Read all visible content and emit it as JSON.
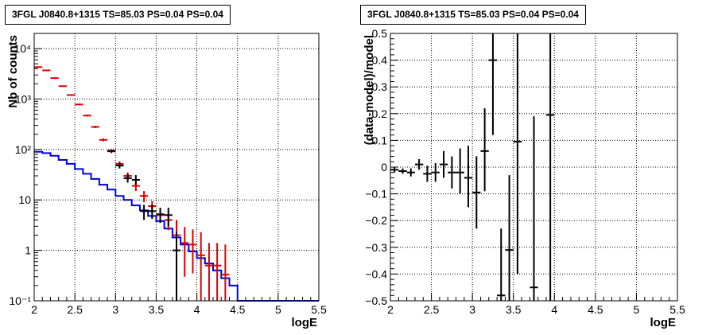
{
  "panels": [
    {
      "title": "3FGL J0840.8+1315 TS=85.03 PS=0.04 PS=0.04",
      "chart_data": {
        "type": "line",
        "xlabel": "logE",
        "ylabel": "Nb of counts",
        "xlim": [
          2,
          5.5
        ],
        "ylim": [
          0.1,
          20000
        ],
        "yscale": "log",
        "grid": true,
        "x_ticks": [
          "2",
          "2.5",
          "3",
          "3.5",
          "4",
          "4.5",
          "5",
          "5.5"
        ],
        "y_ticks": [
          {
            "v": 0.1,
            "label": "10⁻¹"
          },
          {
            "v": 1,
            "label": "1"
          },
          {
            "v": 10,
            "label": "10"
          },
          {
            "v": 100,
            "label": "10²"
          },
          {
            "v": 1000,
            "label": "10³"
          },
          {
            "v": 10000,
            "label": "10⁴"
          }
        ],
        "bin_edges": [
          2.0,
          2.1,
          2.2,
          2.3,
          2.4,
          2.5,
          2.6,
          2.7,
          2.8,
          2.9,
          3.0,
          3.1,
          3.2,
          3.3,
          3.4,
          3.5,
          3.6,
          3.7,
          3.8,
          3.9,
          4.0,
          4.1,
          4.2,
          4.3,
          4.4,
          4.5,
          4.6,
          4.7,
          4.8,
          4.9,
          5.0,
          5.1,
          5.2,
          5.3,
          5.4,
          5.5
        ],
        "series": [
          {
            "kind": "step",
            "color": "#0000dd",
            "values": [
              90,
              85,
              75,
              62,
              52,
              41,
              33,
              26,
              20,
              16,
              12,
              10,
              7.8,
              6.2,
              4.8,
              3.8,
              2.7,
              1.8,
              1.3,
              0.95,
              0.7,
              0.55,
              0.4,
              0.28,
              0.2,
              0.1,
              0.1,
              0.1,
              0.1,
              0.1,
              0.1,
              0.1,
              0.1,
              0.1,
              0.1
            ]
          },
          {
            "kind": "errorbar",
            "color": "#dd0000",
            "x": [
              2.05,
              2.15,
              2.25,
              2.35,
              2.45,
              2.55,
              2.65,
              2.75,
              2.85,
              2.95,
              3.05,
              3.15,
              3.25,
              3.35,
              3.45,
              3.55,
              3.65,
              3.75,
              3.85,
              3.95,
              4.05,
              4.15,
              4.25,
              4.35
            ],
            "y": [
              4300,
              3700,
              2600,
              1800,
              1200,
              780,
              470,
              280,
              155,
              95,
              52,
              30,
              19,
              12,
              7.5,
              5,
              4,
              2,
              1.4,
              1.3,
              0.8,
              0.5,
              0.5,
              0.33
            ],
            "lo": [
              4150,
              3580,
              2500,
              1740,
              1160,
              750,
              450,
              265,
              145,
              88,
              46,
              25,
              15,
              9,
              5.5,
              3.5,
              2.5,
              0.6,
              0.3,
              0.35,
              0.1,
              0.1,
              0.1,
              0.1
            ],
            "hi": [
              4450,
              3820,
              2700,
              1860,
              1240,
              810,
              490,
              295,
              165,
              102,
              58,
              35,
              23,
              15,
              9.5,
              7,
              5.7,
              4,
              2.9,
              2.6,
              2.3,
              1.4,
              1.4,
              1.3
            ]
          },
          {
            "kind": "errorbar",
            "color": "#000000",
            "x": [
              2.95,
              3.05,
              3.15,
              3.25,
              3.35,
              3.45,
              3.55,
              3.65,
              3.75
            ],
            "y": [
              92,
              48,
              27,
              25,
              6,
              6,
              5.2,
              5,
              1
            ],
            "lo": [
              85,
              42,
              22,
              20,
              4,
              4.2,
              3.5,
              3,
              0.1
            ],
            "hi": [
              99,
              55,
              33,
              31,
              8,
              8,
              7,
              7,
              2.3
            ]
          }
        ]
      }
    },
    {
      "title": "3FGL J0840.8+1315 TS=85.03 PS=0.04 PS=0.04",
      "chart_data": {
        "type": "scatter",
        "xlabel": "logE",
        "ylabel": "(data-model)/model",
        "xlim": [
          2,
          5.5
        ],
        "ylim": [
          -0.5,
          0.5
        ],
        "grid": true,
        "x_ticks": [
          "2",
          "2.5",
          "3",
          "3.5",
          "4",
          "4.5",
          "5",
          "5.5"
        ],
        "y_ticks": [
          "−0.5",
          "−0.4",
          "−0.3",
          "−0.2",
          "−0.1",
          "0",
          "0.1",
          "0.2",
          "0.3",
          "0.4",
          "0.5"
        ],
        "series": [
          {
            "kind": "errorbar",
            "color": "#000000",
            "x": [
              2.05,
              2.15,
              2.25,
              2.35,
              2.45,
              2.55,
              2.65,
              2.75,
              2.85,
              2.95,
              3.05,
              3.15,
              3.25,
              3.35,
              3.45,
              3.55,
              3.75,
              3.95
            ],
            "y": [
              -0.01,
              -0.015,
              -0.02,
              0.01,
              -0.025,
              -0.02,
              0.01,
              -0.02,
              -0.02,
              -0.04,
              -0.095,
              0.06,
              0.4,
              -0.48,
              -0.31,
              0.095,
              -0.45,
              0.195
            ],
            "lo": [
              -0.02,
              -0.025,
              -0.035,
              -0.01,
              -0.055,
              -0.055,
              -0.04,
              -0.08,
              -0.1,
              -0.15,
              -0.23,
              -0.09,
              0.12,
              -0.5,
              -0.5,
              -0.4,
              -0.5,
              -0.5
            ],
            "hi": [
              0,
              -0.005,
              -0.005,
              0.03,
              0.005,
              0.015,
              0.06,
              0.04,
              0.07,
              0.08,
              0.04,
              0.22,
              0.5,
              -0.23,
              -0.03,
              0.5,
              0.19,
              0.5
            ]
          }
        ]
      }
    }
  ]
}
